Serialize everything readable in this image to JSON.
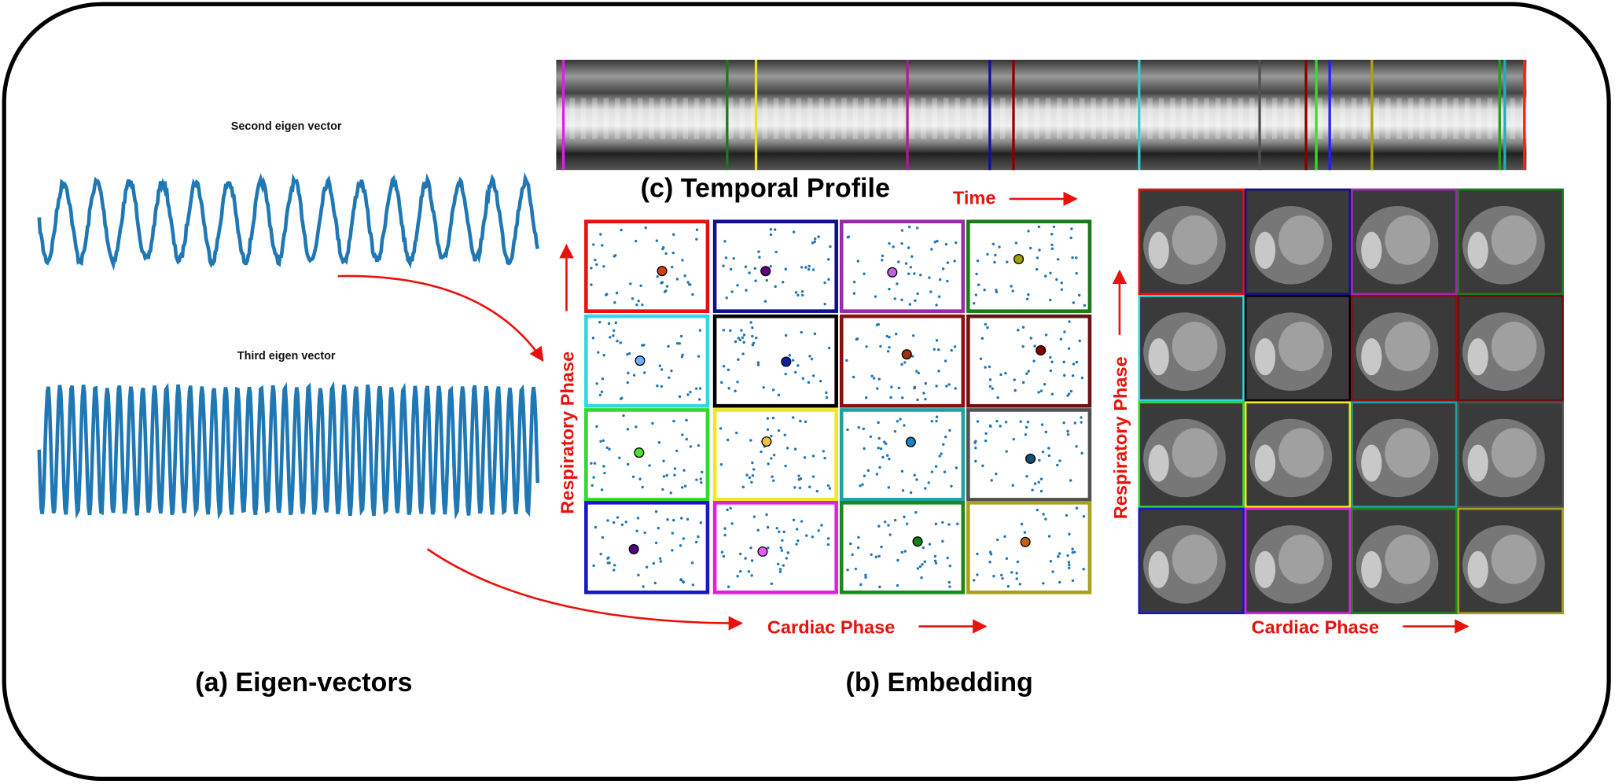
{
  "panel_a": {
    "title": "(a) Eigen-vectors",
    "plots": [
      {
        "label": "Second eigen vector"
      },
      {
        "label": "Third eigen vector"
      }
    ]
  },
  "panel_b": {
    "title": "(b) Embedding",
    "x_axis": "Cardiac Phase",
    "y_axis": "Respiratory Phase"
  },
  "panel_c": {
    "title": "(c) Temporal Profile",
    "axis": "Time"
  },
  "image_grid": {
    "x_axis": "Cardiac Phase",
    "y_axis": "Respiratory Phase"
  }
}
